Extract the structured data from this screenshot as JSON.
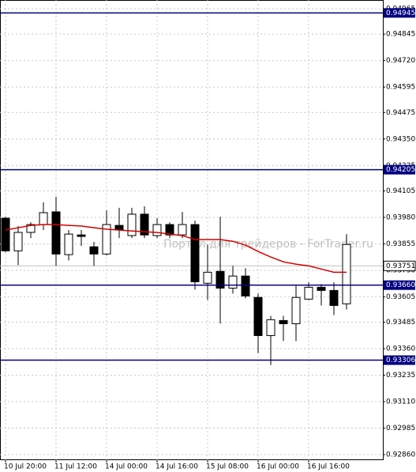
{
  "chart_data": {
    "type": "candlestick",
    "watermark": "Портал для трейдеров - ForTrader.ru",
    "categories": [
      "10 Jul 20:00",
      null,
      null,
      null,
      "11 Jul 12:00",
      null,
      null,
      null,
      "14 Jul 00:00",
      null,
      null,
      null,
      "14 Jul 16:00",
      null,
      null,
      null,
      "15 Jul 08:00",
      null,
      null,
      null,
      "16 Jul 00:00",
      null,
      null,
      null,
      "16 Jul 16:00",
      null,
      null,
      null
    ],
    "open": [
      0.93976,
      0.93822,
      0.93909,
      0.93946,
      0.94006,
      0.93804,
      0.93897,
      0.93841,
      0.93807,
      0.93942,
      0.93894,
      0.93995,
      0.93894,
      0.93946,
      0.93897,
      0.93946,
      0.93669,
      0.93725,
      0.93646,
      0.93703,
      0.93602,
      0.93422,
      0.93493,
      0.93478,
      0.93594,
      0.9365,
      0.93635,
      0.93572
    ],
    "high": [
      0.93983,
      0.93939,
      0.93957,
      0.94051,
      0.94077,
      0.9392,
      0.9392,
      0.93864,
      0.94013,
      0.94025,
      0.94025,
      0.94032,
      0.93976,
      0.93957,
      0.94006,
      0.93965,
      0.93852,
      0.93983,
      0.93751,
      0.9374,
      0.9362,
      0.93515,
      0.93515,
      0.93658,
      0.93673,
      0.93665,
      0.93673,
      0.93901
    ],
    "low": [
      0.93815,
      0.93755,
      0.93882,
      0.9392,
      0.93751,
      0.93777,
      0.93845,
      0.93751,
      0.938,
      0.93882,
      0.93882,
      0.93882,
      0.93882,
      0.93882,
      0.93882,
      0.93639,
      0.9359,
      0.93478,
      0.9362,
      0.93598,
      0.93339,
      0.93283,
      0.93396,
      0.93396,
      0.9359,
      0.93564,
      0.93519,
      0.93545
    ],
    "close": [
      0.93822,
      0.93909,
      0.93946,
      0.94002,
      0.93807,
      0.93901,
      0.9389,
      0.93807,
      0.93946,
      0.9392,
      0.93995,
      0.93897,
      0.93946,
      0.93897,
      0.93946,
      0.93676,
      0.93721,
      0.93646,
      0.93703,
      0.93609,
      0.93422,
      0.93497,
      0.93478,
      0.93602,
      0.9365,
      0.93635,
      0.93564,
      0.93852
    ],
    "up_color": "#ffffff",
    "down_color": "#000000",
    "ma": {
      "color": "#d40000",
      "values": [
        0.9392,
        0.93931,
        0.93942,
        0.93946,
        0.93946,
        0.93942,
        0.93939,
        0.93931,
        0.93924,
        0.9392,
        0.93916,
        0.93912,
        0.93909,
        0.93901,
        0.93894,
        0.93875,
        0.93875,
        0.93875,
        0.93867,
        0.93849,
        0.93819,
        0.93793,
        0.9377,
        0.93759,
        0.93751,
        0.93736,
        0.93721,
        0.93721
      ]
    },
    "levels": [
      0.94945,
      0.94205,
      {
        "value": 0.9366,
        "label": "0.93660"
      },
      0.93306
    ],
    "level_color": "#000080",
    "current_price": 0.93751,
    "ylim": [
      0.92834,
      0.95006
    ],
    "yticks": [
      0.94965,
      0.94845,
      {
        "value": 0.9472,
        "label": "0.94720"
      },
      0.94595,
      0.94475,
      {
        "value": 0.9435,
        "label": "0.94350"
      },
      0.94225,
      0.94105,
      {
        "value": 0.9398,
        "label": "0.93980"
      },
      0.93855,
      {
        "value": 0.9373,
        "label": "0.93730"
      },
      0.93605,
      0.93485,
      {
        "value": 0.9336,
        "label": "0.93360"
      },
      0.93235,
      {
        "value": 0.9311,
        "label": "0.93110"
      },
      {
        "value": 0.9286,
        "label": "0.92860"
      },
      0.92985
    ],
    "grid": true
  }
}
